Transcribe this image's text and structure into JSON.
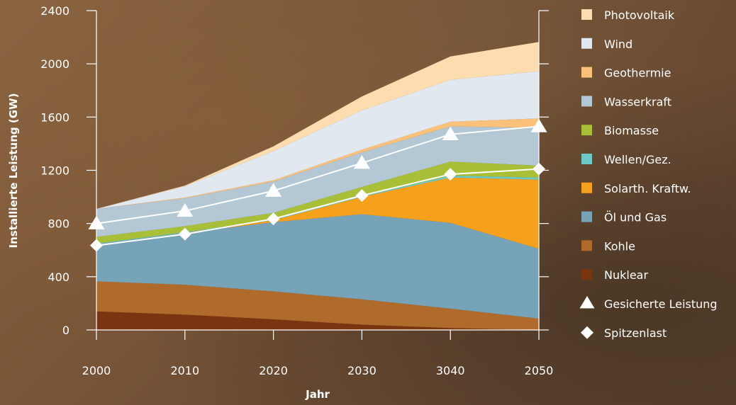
{
  "chart_data": {
    "type": "area",
    "stacked": true,
    "title": "",
    "xlabel": "Jahr",
    "ylabel": "Installierte Leistung (GW)",
    "ylim": [
      0,
      2400
    ],
    "yticks": [
      0,
      400,
      800,
      1200,
      1600,
      2000,
      2400
    ],
    "x": [
      "2000",
      "2010",
      "2020",
      "2030",
      "3040",
      "2050"
    ],
    "legend_position": "right",
    "series": [
      {
        "name": "Nuklear",
        "color": "#7a3510",
        "values": [
          140,
          115,
          80,
          40,
          15,
          0
        ]
      },
      {
        "name": "Kohle",
        "color": "#b06a2c",
        "values": [
          225,
          225,
          210,
          190,
          145,
          85
        ]
      },
      {
        "name": "Öl und Gas",
        "color": "#77a3b8",
        "values": [
          280,
          390,
          520,
          640,
          645,
          525
        ]
      },
      {
        "name": "Solarth. Kraftw.",
        "color": "#f6a11e",
        "values": [
          0,
          0,
          15,
          130,
          340,
          520
        ]
      },
      {
        "name": "Wellen/Gez.",
        "color": "#6cc9c6",
        "values": [
          5,
          5,
          5,
          5,
          15,
          15
        ]
      },
      {
        "name": "Biomasse",
        "color": "#a9bf38",
        "values": [
          50,
          45,
          50,
          70,
          105,
          90
        ]
      },
      {
        "name": "Wasserkraft",
        "color": "#b3c8d4",
        "values": [
          210,
          210,
          235,
          260,
          265,
          285
        ]
      },
      {
        "name": "Geothermie",
        "color": "#fbc07a",
        "values": [
          0,
          5,
          10,
          20,
          35,
          70
        ]
      },
      {
        "name": "Wind",
        "color": "#e1e8f0",
        "values": [
          0,
          85,
          220,
          295,
          315,
          355
        ]
      },
      {
        "name": "Photovoltaik",
        "color": "#fddcb0",
        "values": [
          0,
          5,
          35,
          105,
          175,
          220
        ]
      }
    ],
    "lines": [
      {
        "name": "Gesicherte Leistung",
        "marker": "triangle",
        "color": "#ffffff",
        "values": [
          800,
          895,
          1045,
          1255,
          1470,
          1530
        ]
      },
      {
        "name": "Spitzenlast",
        "marker": "diamond",
        "color": "#ffffff",
        "values": [
          635,
          720,
          835,
          1010,
          1170,
          1210
        ]
      }
    ],
    "legend": [
      {
        "label": "Photovoltaik",
        "kind": "swatch",
        "color": "#fddcb0"
      },
      {
        "label": "Wind",
        "kind": "swatch",
        "color": "#e1e8f0"
      },
      {
        "label": "Geothermie",
        "kind": "swatch",
        "color": "#fbc07a"
      },
      {
        "label": "Wasserkraft",
        "kind": "swatch",
        "color": "#b3c8d4"
      },
      {
        "label": "Biomasse",
        "kind": "swatch",
        "color": "#a9bf38"
      },
      {
        "label": "Wellen/Gez.",
        "kind": "swatch",
        "color": "#6cc9c6"
      },
      {
        "label": "Solarth. Kraftw.",
        "kind": "swatch",
        "color": "#f6a11e"
      },
      {
        "label": "Öl und Gas",
        "kind": "swatch",
        "color": "#77a3b8"
      },
      {
        "label": "Kohle",
        "kind": "swatch",
        "color": "#b06a2c"
      },
      {
        "label": "Nuklear",
        "kind": "swatch",
        "color": "#7a3510"
      },
      {
        "label": "Gesicherte Leistung",
        "kind": "triangle",
        "color": "#ffffff"
      },
      {
        "label": "Spitzenlast",
        "kind": "diamond",
        "color": "#ffffff"
      }
    ],
    "grid": false
  }
}
